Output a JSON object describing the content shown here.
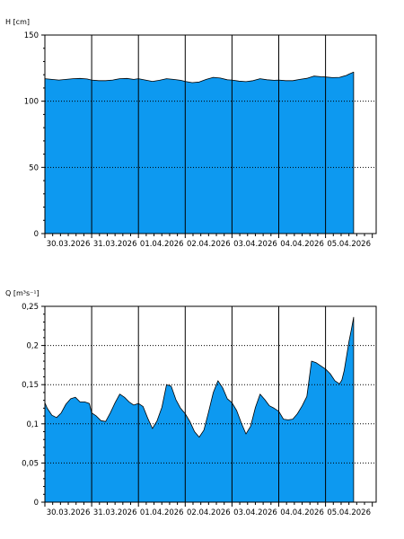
{
  "chart_data": [
    {
      "type": "area",
      "ylabel": "H [cm]",
      "ylim": [
        0,
        150
      ],
      "y_ticks": [
        "0",
        "50",
        "100",
        "150"
      ],
      "y_tick_values": [
        0,
        50,
        100,
        150
      ],
      "dotted_grid_values": [
        50,
        100
      ],
      "x_tick_labels": [
        "30.03.2026",
        "31.03.2026",
        "01.04.2026",
        "02.04.2026",
        "03.04.2026",
        "04.04.2026",
        "05.04.2026"
      ],
      "xlim_days": [
        0,
        7.3
      ],
      "fill_color": "#0d99f0",
      "series": [
        {
          "x_days": [
            0,
            0.15,
            0.3,
            0.45,
            0.6,
            0.75,
            0.9,
            1.0,
            1.15,
            1.3,
            1.45,
            1.6,
            1.75,
            1.9,
            2.0,
            2.15,
            2.3,
            2.45,
            2.6,
            2.75,
            2.9,
            3.0,
            3.15,
            3.3,
            3.45,
            3.6,
            3.75,
            3.9,
            4.0,
            4.15,
            4.3,
            4.45,
            4.6,
            4.75,
            4.9,
            5.0,
            5.15,
            5.3,
            5.45,
            5.6,
            5.75,
            5.9,
            6.0,
            6.15,
            6.3,
            6.45,
            6.5,
            6.6
          ],
          "values": [
            117,
            116.5,
            116,
            116.5,
            117,
            117.2,
            116.8,
            116,
            115.5,
            115.5,
            116,
            117,
            117.2,
            116.5,
            117,
            116,
            115,
            115.8,
            117,
            116.5,
            115.8,
            115,
            114,
            114.5,
            116.5,
            118,
            117.5,
            116.2,
            116,
            115.2,
            114.8,
            115.5,
            117,
            116.2,
            115.8,
            116,
            115.5,
            115.5,
            116.5,
            117.3,
            119,
            118.5,
            118.3,
            117.8,
            118,
            119.5,
            120.5,
            122
          ]
        }
      ]
    },
    {
      "type": "area",
      "ylabel": "Q [m³s⁻¹]",
      "ylim": [
        0,
        0.25
      ],
      "y_ticks": [
        "0",
        "0,05",
        "0,1",
        "0,15",
        "0,2",
        "0,25"
      ],
      "y_tick_values": [
        0,
        0.05,
        0.1,
        0.15,
        0.2,
        0.25
      ],
      "dotted_grid_values": [
        0.05,
        0.1,
        0.15,
        0.2
      ],
      "x_tick_labels": [
        "30.03.2026",
        "31.03.2026",
        "01.04.2026",
        "02.04.2026",
        "03.04.2026",
        "04.04.2026",
        "05.04.2026"
      ],
      "xlim_days": [
        0,
        7.3
      ],
      "fill_color": "#0d99f0",
      "series": [
        {
          "x_days": [
            0,
            0.05,
            0.15,
            0.25,
            0.35,
            0.45,
            0.55,
            0.65,
            0.75,
            0.85,
            0.95,
            1.0,
            1.1,
            1.2,
            1.3,
            1.4,
            1.5,
            1.6,
            1.7,
            1.8,
            1.9,
            2.0,
            2.1,
            2.2,
            2.3,
            2.4,
            2.5,
            2.6,
            2.7,
            2.8,
            2.9,
            3.0,
            3.1,
            3.2,
            3.3,
            3.4,
            3.5,
            3.6,
            3.7,
            3.8,
            3.9,
            4.0,
            4.1,
            4.2,
            4.3,
            4.4,
            4.5,
            4.6,
            4.7,
            4.8,
            4.9,
            5.0,
            5.1,
            5.2,
            5.3,
            5.4,
            5.5,
            5.6,
            5.7,
            5.8,
            5.9,
            6.0,
            6.1,
            6.2,
            6.3,
            6.35,
            6.4,
            6.45,
            6.5,
            6.55,
            6.6
          ],
          "values": [
            0.127,
            0.12,
            0.111,
            0.108,
            0.114,
            0.125,
            0.132,
            0.134,
            0.128,
            0.128,
            0.126,
            0.114,
            0.11,
            0.104,
            0.103,
            0.114,
            0.127,
            0.138,
            0.134,
            0.128,
            0.124,
            0.126,
            0.122,
            0.107,
            0.094,
            0.104,
            0.121,
            0.15,
            0.148,
            0.131,
            0.12,
            0.113,
            0.103,
            0.09,
            0.083,
            0.092,
            0.115,
            0.14,
            0.155,
            0.146,
            0.132,
            0.127,
            0.117,
            0.101,
            0.087,
            0.097,
            0.121,
            0.138,
            0.131,
            0.123,
            0.12,
            0.116,
            0.106,
            0.105,
            0.106,
            0.113,
            0.123,
            0.135,
            0.18,
            0.178,
            0.174,
            0.17,
            0.164,
            0.155,
            0.151,
            0.156,
            0.168,
            0.186,
            0.205,
            0.22,
            0.236
          ]
        }
      ]
    }
  ]
}
